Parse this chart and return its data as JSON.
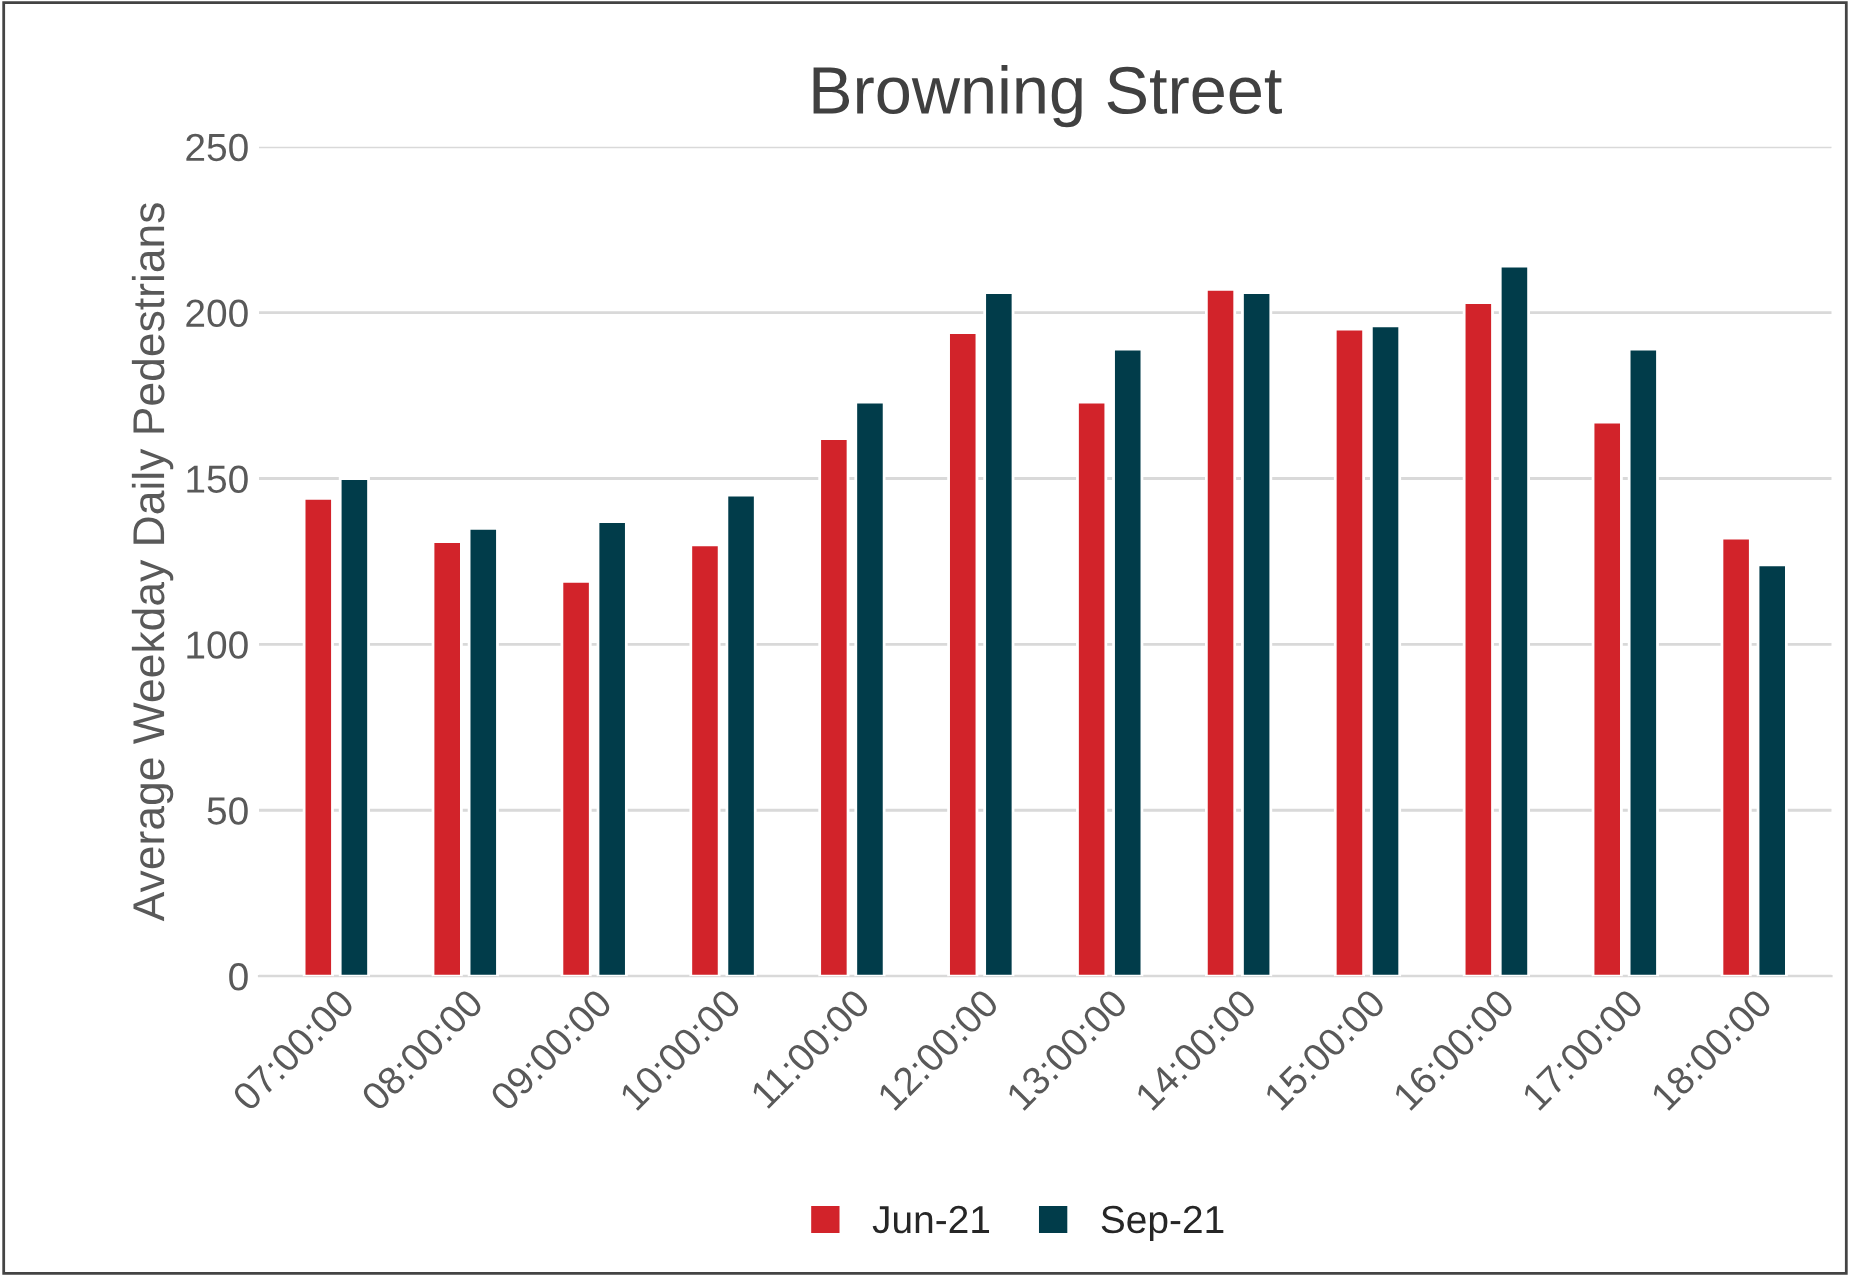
{
  "chart_data": {
    "type": "bar",
    "title": "Browning Street",
    "ylabel": "Average Weekday Daily Pedestrians",
    "categories": [
      "07:00:00",
      "08:00:00",
      "09:00:00",
      "10:00:00",
      "11:00:00",
      "12:00:00",
      "13:00:00",
      "14:00:00",
      "15:00:00",
      "16:00:00",
      "17:00:00",
      "18:00:00"
    ],
    "series": [
      {
        "name": "Jun-21",
        "color": "#d2232a",
        "values": [
          144,
          131,
          119,
          130,
          162,
          194,
          173,
          207,
          195,
          203,
          167,
          132
        ]
      },
      {
        "name": "Sep-21",
        "color": "#013c4a",
        "values": [
          150,
          135,
          137,
          145,
          173,
          206,
          189,
          206,
          196,
          214,
          189,
          124
        ]
      }
    ],
    "ylim": [
      0,
      250
    ],
    "yticks": [
      0,
      50,
      100,
      150,
      200,
      250
    ],
    "grid": "y",
    "legend": "bottom"
  }
}
